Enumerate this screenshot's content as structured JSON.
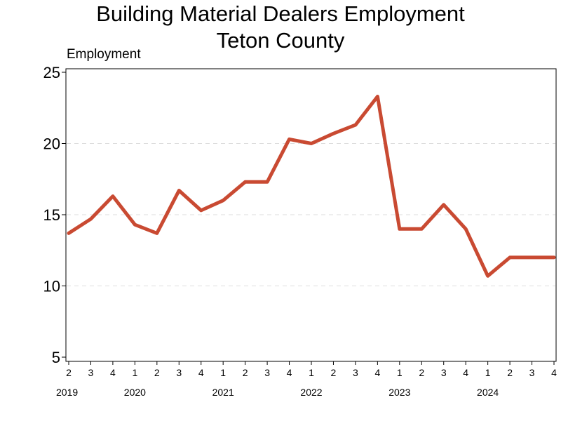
{
  "chart_data": {
    "type": "line",
    "title": "Building Material Dealers Employment",
    "subtitle": "Teton County",
    "ylabel": "Employment",
    "xlabel": "",
    "ylim": [
      5,
      25
    ],
    "yticks": [
      "5",
      "10",
      "15",
      "20",
      "25"
    ],
    "grid": "horizontal dashed",
    "quarters": [
      "2",
      "3",
      "4",
      "1",
      "2",
      "3",
      "4",
      "1",
      "2",
      "3",
      "4",
      "1",
      "2",
      "3",
      "4",
      "1",
      "2",
      "3",
      "4",
      "1",
      "2",
      "3",
      "4"
    ],
    "years": [
      {
        "label": "2019",
        "index": 0
      },
      {
        "label": "2020",
        "index": 3
      },
      {
        "label": "2021",
        "index": 7
      },
      {
        "label": "2022",
        "index": 11
      },
      {
        "label": "2023",
        "index": 15
      },
      {
        "label": "2024",
        "index": 19
      }
    ],
    "series": [
      {
        "color": "#c94a32",
        "values": [
          13.7,
          14.7,
          16.3,
          14.3,
          13.7,
          16.7,
          15.3,
          16.0,
          17.3,
          17.3,
          20.3,
          20.0,
          20.7,
          21.3,
          23.3,
          14.0,
          14.0,
          15.7,
          14.0,
          10.7,
          12.0,
          12.0,
          12.0
        ]
      }
    ]
  }
}
